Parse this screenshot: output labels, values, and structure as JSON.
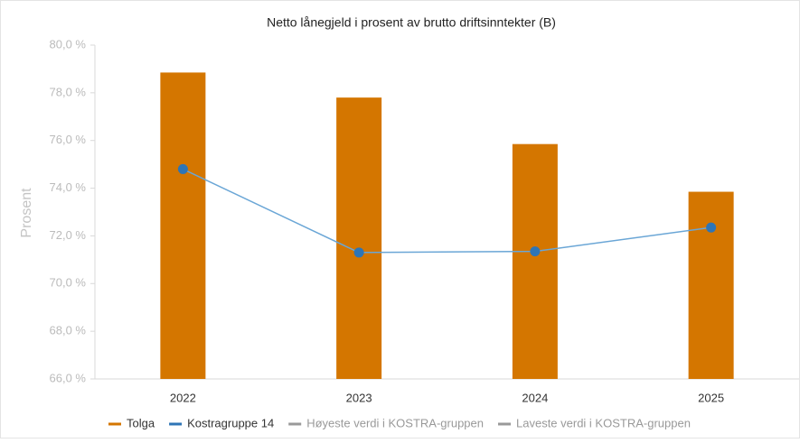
{
  "chart_data": {
    "type": "bar",
    "title": "Netto lånegjeld i prosent av brutto driftsinntekter (B)",
    "y_label": "Prosent",
    "categories": [
      "2022",
      "2023",
      "2024",
      "2025"
    ],
    "series": [
      {
        "name": "Tolga",
        "type": "bar",
        "color": "#d47600",
        "values": [
          78.85,
          77.8,
          75.85,
          73.85
        ]
      },
      {
        "name": "Kostragruppe 14",
        "type": "line",
        "color": "#2e75b6",
        "values": [
          74.8,
          71.3,
          71.35,
          72.35
        ]
      },
      {
        "name": "Høyeste verdi i KOSTRA-gruppen",
        "type": "line",
        "color": "#999999",
        "values": [
          null,
          null,
          null,
          null
        ]
      },
      {
        "name": "Laveste verdi i KOSTRA-gruppen",
        "type": "line",
        "color": "#999999",
        "values": [
          null,
          null,
          null,
          null
        ]
      }
    ],
    "ylim": [
      66,
      80
    ],
    "yticks": [
      {
        "value": 66,
        "label": "66,0 %"
      },
      {
        "value": 68,
        "label": "68,0 %"
      },
      {
        "value": 70,
        "label": "70,0 %"
      },
      {
        "value": 72,
        "label": "72,0 %"
      },
      {
        "value": 74,
        "label": "74,0 %"
      },
      {
        "value": 76,
        "label": "76,0 %"
      },
      {
        "value": 78,
        "label": "78,0 %"
      },
      {
        "value": 80,
        "label": "80,0 %"
      }
    ],
    "legend": "bottom"
  }
}
